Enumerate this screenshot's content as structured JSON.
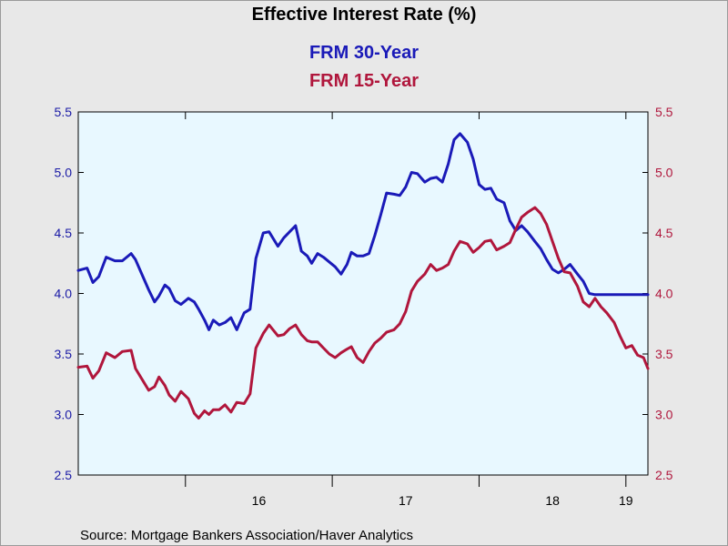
{
  "chart_data": {
    "type": "line",
    "title": "Effective Interest Rate (%)",
    "source": "Source:  Mortgage Bankers Association/Haver Analytics",
    "left_axis": {
      "ylim": [
        2.5,
        5.5
      ],
      "ticks": [
        "2.5",
        "3.0",
        "3.5",
        "4.0",
        "4.5",
        "5.0",
        "5.5"
      ],
      "color": "#1a1aa6"
    },
    "right_axis": {
      "ylim": [
        2.5,
        5.5
      ],
      "ticks": [
        "2.5",
        "3.0",
        "3.5",
        "4.0",
        "4.5",
        "5.0",
        "5.5"
      ],
      "color": "#b0163c"
    },
    "x_range": [
      2015.27,
      2019.15
    ],
    "x_year_boundaries": [
      2016,
      2017,
      2018,
      2019
    ],
    "x_labels": [
      {
        "text": "16",
        "x": 2016.5
      },
      {
        "text": "17",
        "x": 2017.5
      },
      {
        "text": "18",
        "x": 2018.5
      },
      {
        "text": "19",
        "x": 2019.0
      }
    ],
    "series": [
      {
        "name": "FRM 30-Year",
        "color": "#1a1ab8",
        "x": [
          2015.27,
          2015.33,
          2015.37,
          2015.41,
          2015.46,
          2015.52,
          2015.57,
          2015.63,
          2015.66,
          2015.71,
          2015.75,
          2015.79,
          2015.82,
          2015.86,
          2015.89,
          2015.93,
          2015.97,
          2016.02,
          2016.06,
          2016.09,
          2016.13,
          2016.16,
          2016.19,
          2016.23,
          2016.27,
          2016.31,
          2016.35,
          2016.4,
          2016.44,
          2016.48,
          2016.53,
          2016.57,
          2016.63,
          2016.67,
          2016.71,
          2016.75,
          2016.79,
          2016.83,
          2016.86,
          2016.9,
          2016.94,
          2016.98,
          2017.02,
          2017.06,
          2017.1,
          2017.13,
          2017.17,
          2017.21,
          2017.25,
          2017.29,
          2017.33,
          2017.37,
          2017.42,
          2017.46,
          2017.5,
          2017.54,
          2017.58,
          2017.63,
          2017.67,
          2017.71,
          2017.75,
          2017.79,
          2017.83,
          2017.87,
          2017.92,
          2017.96,
          2018.0,
          2018.04,
          2018.08,
          2018.12,
          2018.17,
          2018.21,
          2018.25,
          2018.29,
          2018.33,
          2018.38,
          2018.42,
          2018.46,
          2018.5,
          2018.54,
          2018.58,
          2018.62,
          2018.67,
          2018.71,
          2018.75,
          2018.79,
          2018.83,
          2018.87,
          2018.92,
          2018.96,
          2019.0,
          2019.04,
          2019.08,
          2019.12,
          2019.15
        ],
        "values": [
          4.19,
          4.21,
          4.09,
          4.14,
          4.3,
          4.27,
          4.27,
          4.33,
          4.28,
          4.14,
          4.03,
          3.93,
          3.98,
          4.07,
          4.04,
          3.94,
          3.91,
          3.96,
          3.93,
          3.87,
          3.78,
          3.7,
          3.78,
          3.74,
          3.76,
          3.8,
          3.7,
          3.84,
          3.87,
          4.29,
          4.5,
          4.51,
          4.39,
          4.46,
          4.51,
          4.56,
          4.35,
          4.31,
          4.25,
          4.33,
          4.3,
          4.26,
          4.22,
          4.16,
          4.24,
          4.34,
          4.31,
          4.31,
          4.33,
          4.48,
          4.65,
          4.83,
          4.82,
          4.81,
          4.88,
          5.0,
          4.99,
          4.92,
          4.95,
          4.96,
          4.92,
          5.07,
          5.27,
          5.32,
          5.25,
          5.11,
          4.9,
          4.86,
          4.87,
          4.78,
          4.75,
          4.6,
          4.52,
          4.56,
          4.51,
          4.43,
          4.37,
          4.28,
          4.2,
          4.17,
          4.2,
          4.24,
          4.16,
          4.1,
          4.0,
          3.99,
          3.99,
          3.99,
          3.99,
          3.99,
          3.99,
          3.99,
          3.99,
          3.99,
          3.99
        ]
      },
      {
        "name": "FRM 15-Year",
        "color": "#b0163c",
        "x": [
          2015.27,
          2015.33,
          2015.37,
          2015.41,
          2015.46,
          2015.52,
          2015.57,
          2015.63,
          2015.66,
          2015.71,
          2015.75,
          2015.79,
          2015.82,
          2015.86,
          2015.89,
          2015.93,
          2015.97,
          2016.02,
          2016.06,
          2016.09,
          2016.13,
          2016.16,
          2016.19,
          2016.23,
          2016.27,
          2016.31,
          2016.35,
          2016.4,
          2016.44,
          2016.48,
          2016.53,
          2016.57,
          2016.63,
          2016.67,
          2016.71,
          2016.75,
          2016.79,
          2016.83,
          2016.86,
          2016.9,
          2016.94,
          2016.98,
          2017.02,
          2017.06,
          2017.1,
          2017.13,
          2017.17,
          2017.21,
          2017.25,
          2017.29,
          2017.33,
          2017.37,
          2017.42,
          2017.46,
          2017.5,
          2017.54,
          2017.58,
          2017.63,
          2017.67,
          2017.71,
          2017.75,
          2017.79,
          2017.83,
          2017.87,
          2017.92,
          2017.96,
          2018.0,
          2018.04,
          2018.08,
          2018.12,
          2018.17,
          2018.21,
          2018.25,
          2018.29,
          2018.33,
          2018.38,
          2018.42,
          2018.46,
          2018.5,
          2018.54,
          2018.58,
          2018.62,
          2018.67,
          2018.71,
          2018.75,
          2018.79,
          2018.83,
          2018.87,
          2018.92,
          2018.96,
          2019.0,
          2019.04,
          2019.08,
          2019.12,
          2019.15
        ],
        "values": [
          3.39,
          3.4,
          3.3,
          3.36,
          3.51,
          3.47,
          3.52,
          3.53,
          3.38,
          3.28,
          3.2,
          3.23,
          3.31,
          3.24,
          3.16,
          3.11,
          3.19,
          3.13,
          3.01,
          2.97,
          3.03,
          3.0,
          3.04,
          3.04,
          3.08,
          3.02,
          3.1,
          3.09,
          3.17,
          3.55,
          3.67,
          3.74,
          3.65,
          3.66,
          3.71,
          3.74,
          3.66,
          3.61,
          3.6,
          3.6,
          3.55,
          3.5,
          3.47,
          3.51,
          3.54,
          3.56,
          3.47,
          3.43,
          3.52,
          3.59,
          3.63,
          3.68,
          3.7,
          3.75,
          3.85,
          4.02,
          4.1,
          4.16,
          4.24,
          4.19,
          4.21,
          4.24,
          4.35,
          4.43,
          4.41,
          4.34,
          4.38,
          4.43,
          4.44,
          4.36,
          4.39,
          4.42,
          4.53,
          4.63,
          4.67,
          4.71,
          4.66,
          4.57,
          4.43,
          4.29,
          4.18,
          4.17,
          4.06,
          3.93,
          3.89,
          3.96,
          3.89,
          3.84,
          3.76,
          3.65,
          3.55,
          3.57,
          3.49,
          3.47,
          3.38
        ]
      }
    ]
  }
}
